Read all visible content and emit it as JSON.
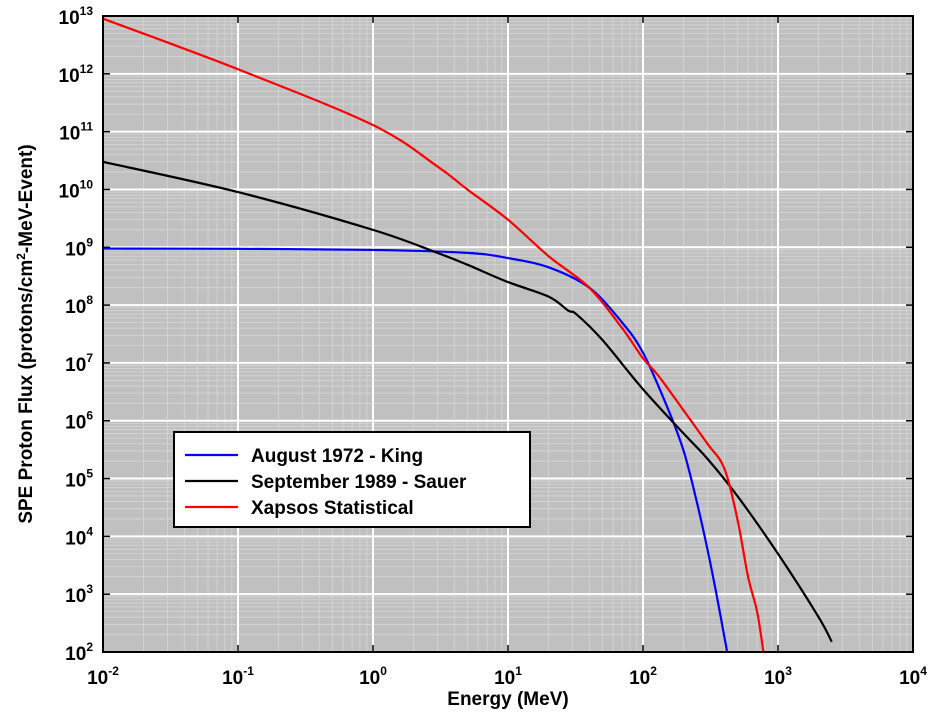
{
  "chart_data": {
    "type": "line",
    "title": "",
    "xlabel": "Energy (MeV)",
    "ylabel_parts": [
      "SPE Proton Flux (protons/cm",
      "2",
      "-MeV-Event)"
    ],
    "xscale": "log",
    "yscale": "log",
    "xlim": [
      0.01,
      10000
    ],
    "ylim": [
      100,
      10000000000000
    ],
    "x_ticks": [
      {
        "base": "10",
        "exp": "-2"
      },
      {
        "base": "10",
        "exp": "-1"
      },
      {
        "base": "10",
        "exp": "0"
      },
      {
        "base": "10",
        "exp": "1"
      },
      {
        "base": "10",
        "exp": "2"
      },
      {
        "base": "10",
        "exp": "3"
      },
      {
        "base": "10",
        "exp": "4"
      }
    ],
    "y_ticks": [
      {
        "base": "10",
        "exp": "2"
      },
      {
        "base": "10",
        "exp": "3"
      },
      {
        "base": "10",
        "exp": "4"
      },
      {
        "base": "10",
        "exp": "5"
      },
      {
        "base": "10",
        "exp": "6"
      },
      {
        "base": "10",
        "exp": "7"
      },
      {
        "base": "10",
        "exp": "8"
      },
      {
        "base": "10",
        "exp": "9"
      },
      {
        "base": "10",
        "exp": "10"
      },
      {
        "base": "10",
        "exp": "11"
      },
      {
        "base": "10",
        "exp": "12"
      },
      {
        "base": "10",
        "exp": "13"
      }
    ],
    "grid": true,
    "background_color": "#c0c0c0",
    "legend_position": "lower-left",
    "series": [
      {
        "name": "August 1972 - King",
        "color": "#0000ff",
        "x": [
          0.01,
          0.1,
          1,
          5,
          10,
          20,
          40,
          70,
          100,
          150,
          200,
          250,
          300,
          350,
          420
        ],
        "y": [
          950000000,
          940000000,
          900000000,
          800000000,
          650000000,
          450000000,
          200000000,
          50000000,
          15000000,
          1800000,
          300000,
          40000,
          6000,
          1000,
          100
        ]
      },
      {
        "name": "September 1989 - Sauer",
        "color": "#000000",
        "x": [
          0.01,
          0.1,
          1,
          3,
          5,
          10,
          20,
          28,
          32,
          50,
          100,
          200,
          300,
          500,
          1000,
          2000,
          2500
        ],
        "y": [
          30000000000,
          9000000000,
          2000000000,
          800000000,
          500000000,
          250000000,
          140000000,
          80000000,
          70000000,
          25000000,
          3500000,
          600000,
          220000,
          50000,
          5000,
          400,
          150
        ]
      },
      {
        "name": "Xapsos Statistical",
        "color": "#ff0000",
        "x": [
          0.01,
          0.1,
          1,
          3,
          5,
          10,
          20,
          40,
          70,
          100,
          130,
          200,
          300,
          400,
          500,
          600,
          700,
          780
        ],
        "y": [
          9000000000000,
          1200000000000,
          130000000000,
          25000000000,
          10000000000,
          3000000000,
          700000000,
          200000000,
          40000000,
          12000000,
          6000000,
          1500000,
          400000,
          150000,
          20000,
          2000,
          500,
          100
        ]
      }
    ]
  }
}
